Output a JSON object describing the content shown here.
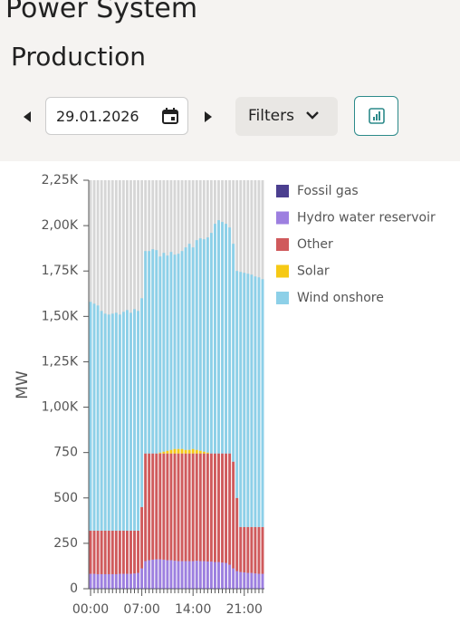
{
  "header": {
    "title": "Power System",
    "subtitle": "Production"
  },
  "controls": {
    "date": "29.01.2026",
    "filters": "Filters"
  },
  "chart_data": {
    "type": "stacked-bar",
    "ylabel": "MW",
    "categories": [
      "00:00",
      null,
      null,
      null,
      null,
      null,
      null,
      null,
      null,
      null,
      null,
      null,
      null,
      null,
      "07:00",
      null,
      null,
      null,
      null,
      null,
      null,
      null,
      null,
      null,
      null,
      null,
      null,
      null,
      "14:00",
      null,
      null,
      null,
      null,
      null,
      null,
      null,
      null,
      null,
      null,
      null,
      null,
      null,
      "21:00",
      null,
      null,
      null,
      null,
      null
    ],
    "ylim": [
      0,
      2250
    ],
    "yticks": [
      0,
      250,
      500,
      750,
      {
        "value": 1000,
        "label": "1,00K"
      },
      {
        "value": 1250,
        "label": "1,25K"
      },
      {
        "value": 1500,
        "label": "1,50K"
      },
      {
        "value": 1750,
        "label": "1,75K"
      },
      {
        "value": 2000,
        "label": "2,00K"
      },
      {
        "value": 2250,
        "label": "2,25K"
      }
    ],
    "series": [
      {
        "name": "Fossil gas",
        "color": "#4b3f8f",
        "values": [
          2,
          2,
          2,
          2,
          2,
          2,
          2,
          2,
          2,
          2,
          2,
          2,
          2,
          2,
          2,
          2,
          2,
          2,
          2,
          2,
          2,
          2,
          2,
          2,
          2,
          2,
          2,
          2,
          2,
          2,
          2,
          2,
          2,
          2,
          2,
          2,
          2,
          2,
          2,
          2,
          2,
          2,
          2,
          2,
          2,
          2,
          2,
          2
        ]
      },
      {
        "name": "Hydro water reservoir",
        "color": "#9d7fe0",
        "values": [
          80,
          80,
          78,
          78,
          78,
          78,
          78,
          78,
          80,
          80,
          80,
          80,
          82,
          85,
          110,
          150,
          155,
          158,
          160,
          160,
          158,
          155,
          155,
          152,
          150,
          150,
          150,
          150,
          150,
          152,
          150,
          150,
          148,
          148,
          145,
          145,
          142,
          140,
          130,
          110,
          95,
          90,
          88,
          85,
          85,
          82,
          80,
          80
        ]
      },
      {
        "name": "Other",
        "color": "#d05a5c",
        "values": [
          238,
          238,
          240,
          240,
          240,
          240,
          240,
          240,
          238,
          238,
          238,
          238,
          236,
          233,
          338,
          593,
          588,
          585,
          583,
          583,
          585,
          588,
          588,
          591,
          593,
          593,
          593,
          593,
          593,
          591,
          593,
          593,
          595,
          595,
          598,
          598,
          601,
          603,
          613,
          588,
          403,
          248,
          250,
          253,
          253,
          256,
          258,
          258
        ]
      },
      {
        "name": "Solar",
        "color": "#f6c915",
        "values": [
          0,
          0,
          0,
          0,
          0,
          0,
          0,
          0,
          0,
          0,
          0,
          0,
          0,
          0,
          0,
          0,
          0,
          0,
          0,
          5,
          10,
          15,
          20,
          25,
          25,
          25,
          20,
          20,
          25,
          20,
          15,
          10,
          5,
          0,
          0,
          0,
          0,
          0,
          0,
          0,
          0,
          0,
          0,
          0,
          0,
          0,
          0,
          0
        ]
      },
      {
        "name": "Wind onshore",
        "color": "#8dd0e8",
        "values": [
          1260,
          1250,
          1240,
          1210,
          1195,
          1190,
          1195,
          1200,
          1190,
          1205,
          1215,
          1200,
          1220,
          1210,
          1150,
          1115,
          1115,
          1125,
          1120,
          1080,
          1095,
          1075,
          1090,
          1070,
          1075,
          1090,
          1115,
          1135,
          1110,
          1155,
          1170,
          1170,
          1185,
          1215,
          1265,
          1285,
          1275,
          1265,
          1245,
          1200,
          1250,
          1405,
          1400,
          1395,
          1390,
          1380,
          1375,
          1365
        ]
      }
    ]
  }
}
